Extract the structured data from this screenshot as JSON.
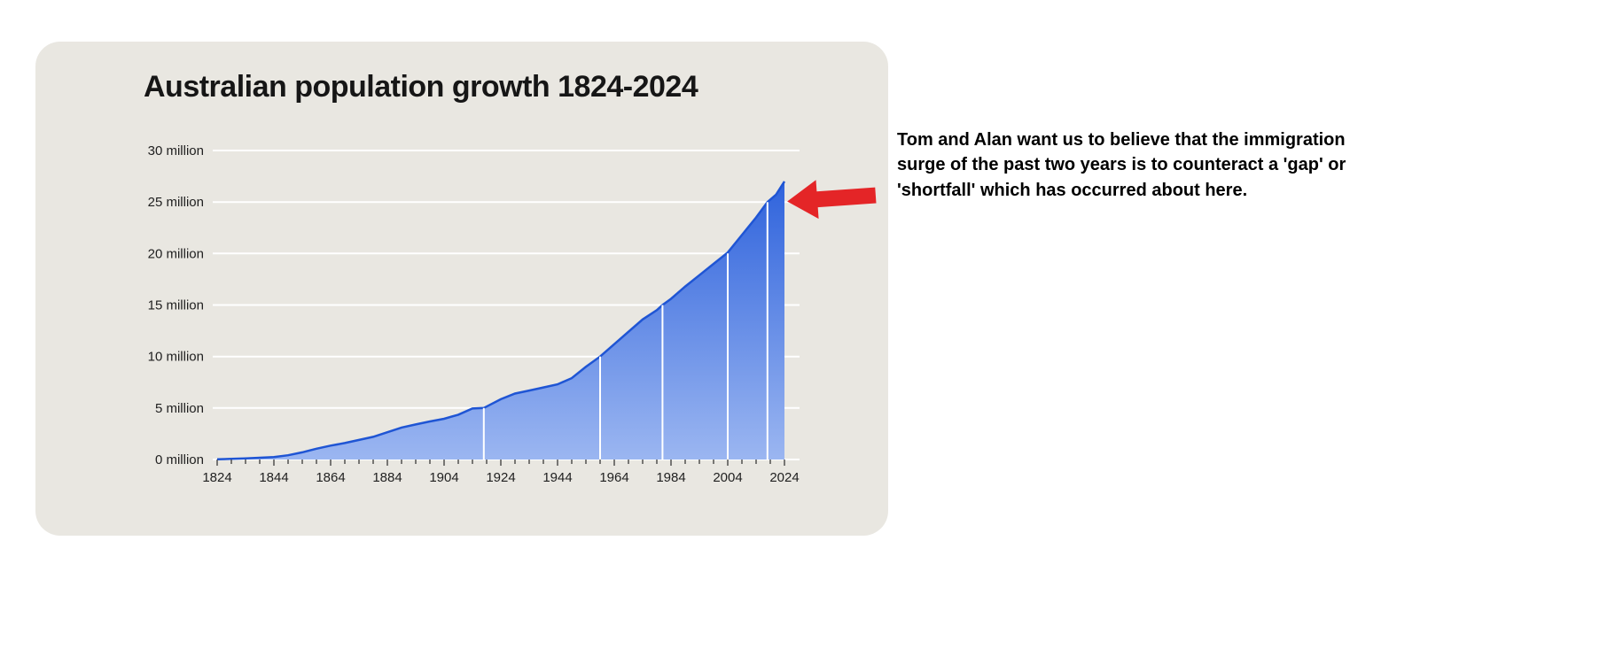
{
  "page": {
    "title": "Australian population growth 1824-2024"
  },
  "annotation": {
    "text": "Tom and Alan want us to believe that the immigration surge of the past two years is to counteract a 'gap' or 'shortfall' which has occurred about here."
  },
  "chart_data": {
    "type": "area",
    "title": "Australian population growth 1824-2024",
    "xlabel": "",
    "ylabel": "",
    "xlim": [
      1824,
      2024
    ],
    "ylim": [
      0,
      30
    ],
    "grid": "horizontal-white",
    "x_ticks": [
      1824,
      1844,
      1864,
      1884,
      1904,
      1924,
      1944,
      1964,
      1984,
      2004,
      2024
    ],
    "y_ticks": [
      0,
      5,
      10,
      15,
      20,
      25,
      30
    ],
    "y_tick_labels": [
      "0 million",
      "5 million",
      "10 million",
      "15 million",
      "20 million",
      "25 million",
      "30 million"
    ],
    "x": [
      1824,
      1829,
      1834,
      1839,
      1844,
      1849,
      1854,
      1859,
      1864,
      1869,
      1874,
      1879,
      1884,
      1889,
      1894,
      1899,
      1904,
      1909,
      1914,
      1918,
      1924,
      1929,
      1934,
      1939,
      1944,
      1949,
      1954,
      1959,
      1964,
      1969,
      1974,
      1979,
      1981,
      1984,
      1989,
      1994,
      1999,
      2004,
      2009,
      2014,
      2018,
      2021,
      2024
    ],
    "values": [
      0.03,
      0.06,
      0.11,
      0.17,
      0.23,
      0.41,
      0.7,
      1.05,
      1.35,
      1.6,
      1.9,
      2.2,
      2.65,
      3.1,
      3.4,
      3.7,
      3.95,
      4.35,
      4.95,
      5.0,
      5.85,
      6.4,
      6.7,
      7.0,
      7.3,
      7.9,
      9.0,
      10.0,
      11.2,
      12.4,
      13.6,
      14.5,
      15.0,
      15.6,
      16.8,
      17.9,
      19.0,
      20.1,
      21.8,
      23.5,
      25.0,
      25.7,
      27.0
    ],
    "milestone_lines": [
      {
        "year": 1918,
        "value": 5
      },
      {
        "year": 1959,
        "value": 10
      },
      {
        "year": 1981,
        "value": 15
      },
      {
        "year": 2004,
        "value": 20
      },
      {
        "year": 2018,
        "value": 25
      }
    ],
    "colors": {
      "card_bg": "#e9e7e1",
      "area_top": "#2f63dc",
      "area_bottom": "#9bb6f1",
      "line": "#1f55d4",
      "grid": "#ffffff",
      "tick": "#3a3a3a",
      "arrow": "#e42527"
    }
  }
}
